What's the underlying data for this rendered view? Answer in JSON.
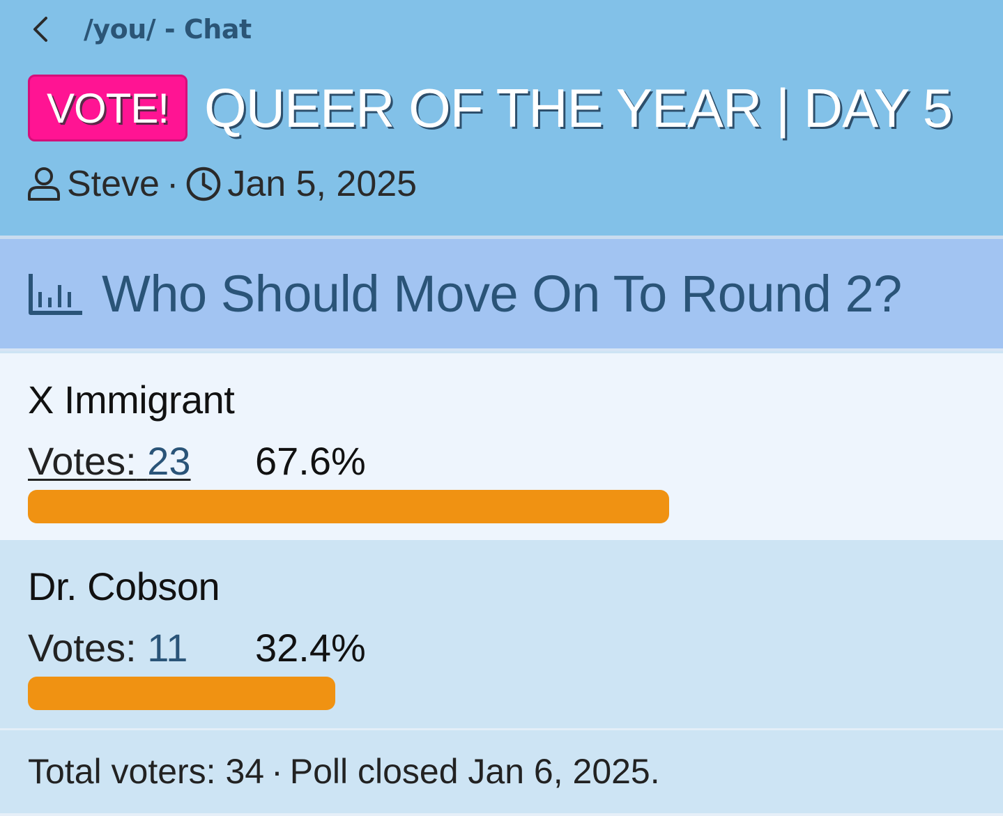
{
  "header": {
    "breadcrumb": "/you/ - Chat",
    "badge": "VOTE!",
    "title": "QUEER OF THE YEAR | DAY 5",
    "author": "Steve",
    "meta_separator": "·",
    "date": "Jan 5, 2025",
    "icons": [
      "chevron-left-icon",
      "user-icon",
      "clock-icon"
    ]
  },
  "poll": {
    "question": "Who Should Move On To Round 2?",
    "icon": "bar-chart-icon",
    "votes_label": "Votes:",
    "options": [
      {
        "name": "X Immigrant",
        "votes": "23",
        "percent": "67.6%",
        "fraction": 0.676
      },
      {
        "name": "Dr. Cobson",
        "votes": "11",
        "percent": "32.4%",
        "fraction": 0.324
      }
    ],
    "footer": {
      "total_voters": "Total voters: 34",
      "separator": "·",
      "status": "Poll closed Jan 6, 2025."
    }
  },
  "colors": {
    "header_bg": "#82c1e8",
    "badge_bg": "#ff1493",
    "poll_head_bg": "#a2c4f2",
    "bar": "#f09212",
    "accent_text": "#2a5478"
  }
}
